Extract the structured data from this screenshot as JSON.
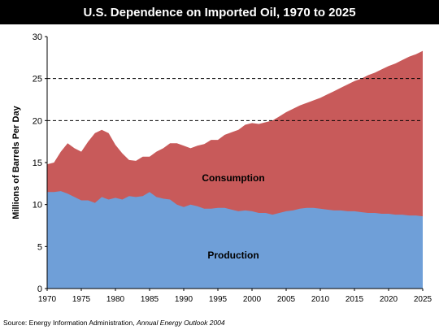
{
  "title": "U.S. Dependence on Imported Oil, 1970 to 2025",
  "source": {
    "prefix": "Source: Energy Information Administration, ",
    "publication": "Annual Energy Outlook 2004"
  },
  "colors": {
    "consumption": "#c85a5a",
    "production": "#6f9fd8",
    "background": "#ffffff",
    "title_bar": "#000000"
  },
  "chart_data": {
    "type": "area",
    "title": "U.S. Dependence on Imported Oil, 1970 to 2025",
    "xlabel": "",
    "ylabel": "Millions of Barrels Per Day",
    "xlim": [
      1970,
      2025
    ],
    "ylim": [
      0,
      30
    ],
    "x_ticks": [
      1970,
      1975,
      1980,
      1985,
      1990,
      1995,
      2000,
      2005,
      2010,
      2015,
      2020,
      2025
    ],
    "y_ticks": [
      0,
      5,
      10,
      15,
      20,
      25,
      30
    ],
    "dashed_gridlines": [
      20,
      25
    ],
    "x": [
      1970,
      1971,
      1972,
      1973,
      1974,
      1975,
      1976,
      1977,
      1978,
      1979,
      1980,
      1981,
      1982,
      1983,
      1984,
      1985,
      1986,
      1987,
      1988,
      1989,
      1990,
      1991,
      1992,
      1993,
      1994,
      1995,
      1996,
      1997,
      1998,
      1999,
      2000,
      2001,
      2002,
      2003,
      2004,
      2005,
      2006,
      2007,
      2008,
      2009,
      2010,
      2011,
      2012,
      2013,
      2014,
      2015,
      2016,
      2017,
      2018,
      2019,
      2020,
      2021,
      2022,
      2023,
      2024,
      2025
    ],
    "series": [
      {
        "name": "Consumption",
        "values": [
          14.8,
          15.0,
          16.3,
          17.3,
          16.7,
          16.3,
          17.5,
          18.5,
          18.9,
          18.5,
          17.1,
          16.1,
          15.3,
          15.2,
          15.7,
          15.7,
          16.3,
          16.7,
          17.3,
          17.3,
          17.0,
          16.7,
          17.0,
          17.2,
          17.7,
          17.7,
          18.3,
          18.6,
          18.9,
          19.5,
          19.7,
          19.6,
          19.8,
          20.0,
          20.5,
          21.0,
          21.4,
          21.8,
          22.1,
          22.4,
          22.7,
          23.1,
          23.5,
          23.9,
          24.3,
          24.7,
          25.0,
          25.4,
          25.7,
          26.1,
          26.5,
          26.8,
          27.2,
          27.6,
          27.9,
          28.3
        ]
      },
      {
        "name": "Production",
        "values": [
          11.5,
          11.5,
          11.6,
          11.3,
          10.9,
          10.5,
          10.5,
          10.2,
          10.9,
          10.6,
          10.8,
          10.6,
          11.0,
          10.9,
          11.0,
          11.5,
          10.9,
          10.7,
          10.6,
          10.0,
          9.7,
          10.0,
          9.8,
          9.5,
          9.5,
          9.6,
          9.6,
          9.4,
          9.2,
          9.3,
          9.2,
          9.0,
          9.0,
          8.8,
          9.0,
          9.2,
          9.3,
          9.5,
          9.6,
          9.6,
          9.5,
          9.4,
          9.3,
          9.3,
          9.2,
          9.2,
          9.1,
          9.0,
          9.0,
          8.9,
          8.9,
          8.8,
          8.8,
          8.7,
          8.7,
          8.6
        ]
      }
    ],
    "annotations": [
      "Consumption",
      "Production"
    ]
  }
}
